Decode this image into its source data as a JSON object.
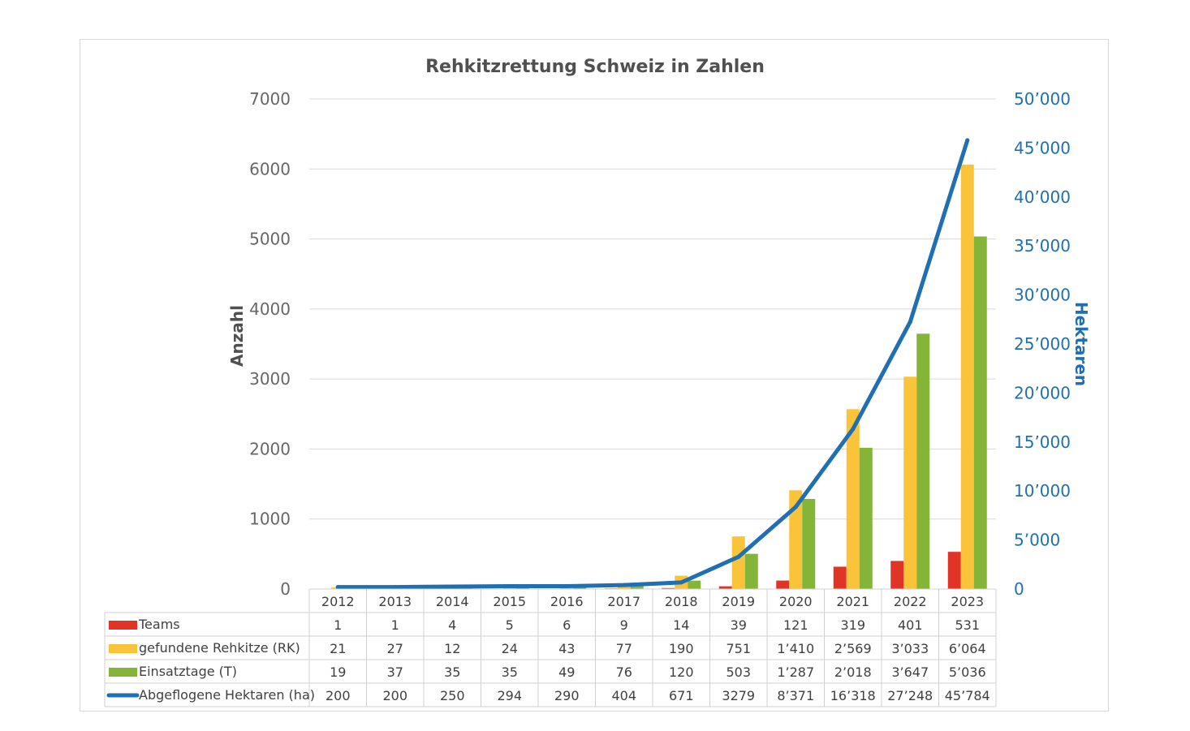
{
  "chart_data": {
    "type": "bar",
    "title": "Rehkitzrettung Schweiz in Zahlen",
    "categories": [
      "2012",
      "2013",
      "2014",
      "2015",
      "2016",
      "2017",
      "2018",
      "2019",
      "2020",
      "2021",
      "2022",
      "2023"
    ],
    "ylabel": "Anzahl",
    "y2label": "Hektaren",
    "ylim": [
      0,
      7000
    ],
    "y2lim": [
      0,
      50000
    ],
    "yticks": [
      "0",
      "1000",
      "2000",
      "3000",
      "4000",
      "5000",
      "6000",
      "7000"
    ],
    "y2ticks": [
      "0",
      "5’000",
      "10’000",
      "15’000",
      "20’000",
      "25’000",
      "30’000",
      "35’000",
      "40’000",
      "45’000",
      "50’000"
    ],
    "grid": true,
    "legend": "data table with legend keys below the chart",
    "series": [
      {
        "name": "Teams",
        "type": "bar",
        "axis": "left",
        "color": "#e03427",
        "values": [
          1,
          1,
          4,
          5,
          6,
          9,
          14,
          39,
          121,
          319,
          401,
          531
        ],
        "labels": [
          "1",
          "1",
          "4",
          "5",
          "6",
          "9",
          "14",
          "39",
          "121",
          "319",
          "401",
          "531"
        ]
      },
      {
        "name": "gefundene Rehkitze (RK)",
        "type": "bar",
        "axis": "left",
        "color": "#f9c43a",
        "values": [
          21,
          27,
          12,
          24,
          43,
          77,
          190,
          751,
          1410,
          2569,
          3033,
          6064
        ],
        "labels": [
          "21",
          "27",
          "12",
          "24",
          "43",
          "77",
          "190",
          "751",
          "1’410",
          "2’569",
          "3’033",
          "6’064"
        ]
      },
      {
        "name": "Einsatztage (T)",
        "type": "bar",
        "axis": "left",
        "color": "#84b438",
        "values": [
          19,
          37,
          35,
          35,
          49,
          76,
          120,
          503,
          1287,
          2018,
          3647,
          5036
        ],
        "labels": [
          "19",
          "37",
          "35",
          "35",
          "49",
          "76",
          "120",
          "503",
          "1’287",
          "2’018",
          "3’647",
          "5’036"
        ]
      },
      {
        "name": "Abgeflogene Hektaren (ha)",
        "type": "line",
        "axis": "right",
        "color": "#1f6fb2",
        "values": [
          200,
          200,
          250,
          294,
          290,
          404,
          671,
          3279,
          8371,
          16318,
          27248,
          45784
        ],
        "labels": [
          "200",
          "200",
          "250",
          "294",
          "290",
          "404",
          "671",
          "3279",
          "8’371",
          "16’318",
          "27’248",
          "45’784"
        ]
      }
    ]
  }
}
